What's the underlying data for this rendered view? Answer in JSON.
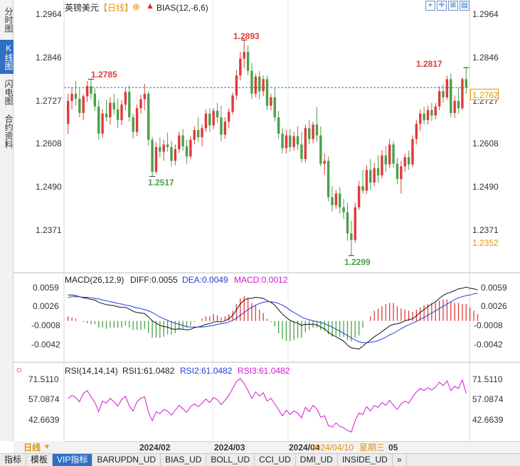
{
  "sidebar": {
    "tabs": [
      {
        "label": "分时图",
        "active": false
      },
      {
        "label": "K线图",
        "active": true
      },
      {
        "label": "闪电图",
        "active": false
      },
      {
        "label": "合约资料",
        "active": false
      }
    ]
  },
  "header": {
    "symbol": "英镑美元",
    "period": "【日线】",
    "circle_icon": "⊕",
    "indicator": "BIAS(12,-6,6)",
    "tool_icons": [
      "fit-icon",
      "expand-icon",
      "zoom-in-icon",
      "grid-icon",
      "chart-icon"
    ]
  },
  "price_axis": {
    "labels_right": [
      "1.2964",
      "1.2846",
      "1.2727",
      "1.2608",
      "1.2490",
      "1.2371"
    ],
    "labels_left": [
      "1.2964",
      "1.2846",
      "1.2727",
      "1.2608",
      "1.2490",
      "1.2371"
    ],
    "current_price": "1.2762",
    "low_marker": "1.2352",
    "current_color": "#e8930a"
  },
  "annotations": {
    "high1": "1.2785",
    "high2": "1.2893",
    "high3": "1.2817",
    "low1": "1.2517",
    "low2": "1.2299",
    "high_color": "#e03a3a",
    "low_color": "#4aa04a"
  },
  "macd": {
    "title": "MACD(26,12,9)",
    "diff": "DIFF:0.0055",
    "dea": "DEA:0.0049",
    "macd": "MACD:0.0012",
    "axis": [
      "0.0059",
      "0.0026",
      "-0.0008",
      "-0.0042"
    ],
    "dea_color": "#1e3fd8",
    "macd_color": "#d21ad2"
  },
  "rsi": {
    "title": "RSI(14,14,14)",
    "rsi1": "RSI1:61.0482",
    "rsi2": "RSI2:61.0482",
    "rsi3": "RSI3:61.0482",
    "axis": [
      "71.5110",
      "57.0874",
      "42.6639"
    ],
    "settings_icon": "gear-icon",
    "line_color": "#d21ad2"
  },
  "timeline": {
    "period_button": "日线",
    "dates": [
      "2024/02",
      "2024/03",
      "2024/04"
    ],
    "cursor_date": "2024/04/10",
    "weekday": "星期三",
    "cursor_tail": "05"
  },
  "bottom_tabs": [
    {
      "label": "指标",
      "active": false
    },
    {
      "label": "模板",
      "active": false
    },
    {
      "label": "VIP指标",
      "active": true
    },
    {
      "label": "BARUPDN_UD",
      "active": false
    },
    {
      "label": "BIAS_UD",
      "active": false
    },
    {
      "label": "BOLL_UD",
      "active": false
    },
    {
      "label": "CCI_UD",
      "active": false
    },
    {
      "label": "DMI_UD",
      "active": false
    },
    {
      "label": "INSIDE_UD",
      "active": false
    },
    {
      "label": "»",
      "active": false
    }
  ],
  "chart_data": {
    "type": "candlestick",
    "title": "英镑美元【日线】",
    "ylim": [
      1.228,
      1.298
    ],
    "x_ticks": [
      "2024/02",
      "2024/03",
      "2024/04"
    ],
    "ohlc": [
      [
        1.2662,
        1.2745,
        1.2634,
        1.2725
      ],
      [
        1.2725,
        1.2762,
        1.2701,
        1.2745
      ],
      [
        1.2745,
        1.278,
        1.2712,
        1.2731
      ],
      [
        1.2731,
        1.276,
        1.268,
        1.2692
      ],
      [
        1.2692,
        1.2745,
        1.2672,
        1.2738
      ],
      [
        1.2738,
        1.278,
        1.2722,
        1.2766
      ],
      [
        1.2766,
        1.2785,
        1.273,
        1.2745
      ],
      [
        1.2745,
        1.276,
        1.2698,
        1.271
      ],
      [
        1.271,
        1.2728,
        1.2618,
        1.2635
      ],
      [
        1.2635,
        1.2702,
        1.2624,
        1.269
      ],
      [
        1.269,
        1.2728,
        1.2668,
        1.268
      ],
      [
        1.268,
        1.2735,
        1.266,
        1.272
      ],
      [
        1.272,
        1.2745,
        1.2688,
        1.2702
      ],
      [
        1.2702,
        1.2732,
        1.265,
        1.2672
      ],
      [
        1.2672,
        1.2728,
        1.2658,
        1.2715
      ],
      [
        1.2715,
        1.276,
        1.27,
        1.275
      ],
      [
        1.275,
        1.2768,
        1.2668,
        1.268
      ],
      [
        1.268,
        1.269,
        1.2622,
        1.264
      ],
      [
        1.264,
        1.2715,
        1.2628,
        1.2705
      ],
      [
        1.2705,
        1.2742,
        1.269,
        1.273
      ],
      [
        1.273,
        1.2772,
        1.27,
        1.2745
      ],
      [
        1.2745,
        1.2752,
        1.2602,
        1.2618
      ],
      [
        1.2618,
        1.2626,
        1.2517,
        1.253
      ],
      [
        1.253,
        1.2612,
        1.2524,
        1.2598
      ],
      [
        1.2598,
        1.2625,
        1.257,
        1.2585
      ],
      [
        1.2585,
        1.2618,
        1.256,
        1.2605
      ],
      [
        1.2605,
        1.2638,
        1.2585,
        1.2598
      ],
      [
        1.2598,
        1.2615,
        1.2545,
        1.256
      ],
      [
        1.256,
        1.2605,
        1.2548,
        1.2592
      ],
      [
        1.2592,
        1.264,
        1.2582,
        1.263
      ],
      [
        1.263,
        1.2648,
        1.2588,
        1.26
      ],
      [
        1.26,
        1.2618,
        1.2552,
        1.2572
      ],
      [
        1.2572,
        1.2628,
        1.2565,
        1.2618
      ],
      [
        1.2618,
        1.2655,
        1.2605,
        1.2645
      ],
      [
        1.2645,
        1.268,
        1.2612,
        1.2625
      ],
      [
        1.2625,
        1.266,
        1.26,
        1.265
      ],
      [
        1.265,
        1.2702,
        1.264,
        1.269
      ],
      [
        1.269,
        1.2705,
        1.264,
        1.2658
      ],
      [
        1.2658,
        1.2705,
        1.2648,
        1.2698
      ],
      [
        1.2698,
        1.272,
        1.2665,
        1.268
      ],
      [
        1.268,
        1.2712,
        1.2615,
        1.2632
      ],
      [
        1.2632,
        1.268,
        1.262,
        1.2668
      ],
      [
        1.2668,
        1.2705,
        1.265,
        1.2695
      ],
      [
        1.2695,
        1.2748,
        1.2688,
        1.274
      ],
      [
        1.274,
        1.281,
        1.2728,
        1.2795
      ],
      [
        1.2795,
        1.286,
        1.2782,
        1.2842
      ],
      [
        1.2842,
        1.2893,
        1.2815,
        1.286
      ],
      [
        1.286,
        1.2878,
        1.2795,
        1.2808
      ],
      [
        1.2808,
        1.283,
        1.273,
        1.2745
      ],
      [
        1.2745,
        1.28,
        1.2735,
        1.2792
      ],
      [
        1.2792,
        1.2808,
        1.273,
        1.2752
      ],
      [
        1.2752,
        1.2795,
        1.2738,
        1.2785
      ],
      [
        1.2785,
        1.2795,
        1.27,
        1.2712
      ],
      [
        1.2712,
        1.2745,
        1.27,
        1.2735
      ],
      [
        1.2735,
        1.2762,
        1.2668,
        1.268
      ],
      [
        1.268,
        1.2698,
        1.262,
        1.2635
      ],
      [
        1.2635,
        1.265,
        1.258,
        1.2595
      ],
      [
        1.2595,
        1.2645,
        1.258,
        1.263
      ],
      [
        1.263,
        1.2648,
        1.2585,
        1.2598
      ],
      [
        1.2598,
        1.264,
        1.2588,
        1.2628
      ],
      [
        1.2628,
        1.2655,
        1.259,
        1.2605
      ],
      [
        1.2605,
        1.264,
        1.2555,
        1.2565
      ],
      [
        1.2565,
        1.266,
        1.2555,
        1.265
      ],
      [
        1.265,
        1.2672,
        1.2605,
        1.262
      ],
      [
        1.262,
        1.2668,
        1.2608,
        1.266
      ],
      [
        1.266,
        1.2708,
        1.2612,
        1.263
      ],
      [
        1.263,
        1.2655,
        1.2545,
        1.2552
      ],
      [
        1.2552,
        1.258,
        1.2522,
        1.256
      ],
      [
        1.256,
        1.2572,
        1.2448,
        1.246
      ],
      [
        1.246,
        1.249,
        1.242,
        1.2438
      ],
      [
        1.2438,
        1.248,
        1.2428,
        1.247
      ],
      [
        1.247,
        1.2488,
        1.2415,
        1.2432
      ],
      [
        1.2432,
        1.2455,
        1.24,
        1.2418
      ],
      [
        1.2418,
        1.2445,
        1.234,
        1.236
      ],
      [
        1.236,
        1.2395,
        1.2299,
        1.2342
      ],
      [
        1.2342,
        1.2445,
        1.2335,
        1.2432
      ],
      [
        1.2432,
        1.2505,
        1.2425,
        1.249
      ],
      [
        1.249,
        1.2535,
        1.247,
        1.2478
      ],
      [
        1.2478,
        1.2548,
        1.2468,
        1.2535
      ],
      [
        1.2535,
        1.2565,
        1.248,
        1.25
      ],
      [
        1.25,
        1.2555,
        1.249,
        1.254
      ],
      [
        1.254,
        1.2575,
        1.25,
        1.252
      ],
      [
        1.252,
        1.259,
        1.2512,
        1.2575
      ],
      [
        1.2575,
        1.26,
        1.253,
        1.255
      ],
      [
        1.255,
        1.262,
        1.254,
        1.2605
      ],
      [
        1.2605,
        1.2615,
        1.254,
        1.2552
      ],
      [
        1.2552,
        1.2568,
        1.2495,
        1.251
      ],
      [
        1.251,
        1.256,
        1.247,
        1.2545
      ],
      [
        1.2545,
        1.258,
        1.253,
        1.257
      ],
      [
        1.257,
        1.2588,
        1.2535,
        1.255
      ],
      [
        1.255,
        1.263,
        1.2542,
        1.262
      ],
      [
        1.262,
        1.2672,
        1.2605,
        1.2662
      ],
      [
        1.2662,
        1.2702,
        1.2642,
        1.269
      ],
      [
        1.269,
        1.271,
        1.266,
        1.2672
      ],
      [
        1.2672,
        1.2712,
        1.266,
        1.27
      ],
      [
        1.27,
        1.272,
        1.267,
        1.2685
      ],
      [
        1.2685,
        1.272,
        1.2675,
        1.271
      ],
      [
        1.271,
        1.2765,
        1.27,
        1.2752
      ],
      [
        1.2752,
        1.277,
        1.272,
        1.2735
      ],
      [
        1.2735,
        1.2795,
        1.2728,
        1.2785
      ],
      [
        1.2785,
        1.28,
        1.268,
        1.2692
      ],
      [
        1.2692,
        1.274,
        1.2678,
        1.2725
      ],
      [
        1.2725,
        1.2762,
        1.269,
        1.2705
      ],
      [
        1.2705,
        1.279,
        1.27,
        1.2785
      ],
      [
        1.2785,
        1.2817,
        1.2745,
        1.2762
      ]
    ],
    "macd": {
      "ylim": [
        -0.0058,
        0.0072
      ],
      "diff": [
        0.0046,
        0.0046,
        0.0045,
        0.0043,
        0.0041,
        0.004,
        0.0038,
        0.0037,
        0.0033,
        0.0031,
        0.0029,
        0.0028,
        0.0027,
        0.0025,
        0.0024,
        0.0024,
        0.0021,
        0.0017,
        0.0015,
        0.0014,
        0.0013,
        0.0007,
        0.0,
        -0.0004,
        -0.0008,
        -0.001,
        -0.0011,
        -0.0014,
        -0.0015,
        -0.0014,
        -0.0015,
        -0.0016,
        -0.0015,
        -0.0012,
        -0.0011,
        -0.0009,
        -0.0006,
        -0.0005,
        -0.0002,
        -0.0001,
        -0.0002,
        0.0,
        0.0004,
        0.001,
        0.002,
        0.003,
        0.0037,
        0.004,
        0.004,
        0.0042,
        0.0041,
        0.004,
        0.0036,
        0.0033,
        0.0028,
        0.002,
        0.0012,
        0.0006,
        0.0001,
        -0.0002,
        -0.0004,
        -0.0008,
        -0.0006,
        -0.0006,
        -0.0006,
        -0.0007,
        -0.0011,
        -0.0014,
        -0.002,
        -0.0025,
        -0.0028,
        -0.0032,
        -0.0036,
        -0.0043,
        -0.0048,
        -0.0049,
        -0.005,
        -0.0045,
        -0.0039,
        -0.0034,
        -0.0028,
        -0.0024,
        -0.0019,
        -0.0014,
        -0.0009,
        -0.0006,
        -0.0005,
        -0.0003,
        0.0,
        0.0002,
        0.0004,
        0.0009,
        0.0015,
        0.002,
        0.0025,
        0.003,
        0.0034,
        0.004,
        0.0045,
        0.0049,
        0.0051,
        0.0054,
        0.0057,
        0.0058,
        0.006,
        0.0058,
        0.0057,
        0.0055
      ],
      "dea": [
        0.0042,
        0.0043,
        0.0043,
        0.0043,
        0.0042,
        0.0042,
        0.0041,
        0.004,
        0.0039,
        0.0037,
        0.0036,
        0.0034,
        0.0033,
        0.0031,
        0.003,
        0.0028,
        0.0027,
        0.0025,
        0.0023,
        0.0022,
        0.002,
        0.0018,
        0.0015,
        0.0011,
        0.0007,
        0.0004,
        0.0001,
        -0.0002,
        -0.0004,
        -0.0006,
        -0.0008,
        -0.001,
        -0.0011,
        -0.0011,
        -0.0011,
        -0.0011,
        -0.001,
        -0.0009,
        -0.0008,
        -0.0006,
        -0.0005,
        -0.0004,
        -0.0002,
        0.0001,
        0.0005,
        0.001,
        0.0015,
        0.002,
        0.0024,
        0.0028,
        0.0031,
        0.0033,
        0.0034,
        0.0034,
        0.0033,
        0.0031,
        0.0028,
        0.0024,
        0.0019,
        0.0015,
        0.0011,
        0.0007,
        0.0004,
        0.0002,
        0.0,
        -0.0001,
        -0.0003,
        -0.0005,
        -0.0008,
        -0.0011,
        -0.0015,
        -0.0018,
        -0.0022,
        -0.0026,
        -0.003,
        -0.0034,
        -0.0037,
        -0.0039,
        -0.0039,
        -0.0038,
        -0.0037,
        -0.0035,
        -0.0032,
        -0.0029,
        -0.0025,
        -0.0022,
        -0.0018,
        -0.0014,
        -0.001,
        -0.0007,
        -0.0004,
        -0.0001,
        0.0003,
        0.0006,
        0.001,
        0.0014,
        0.0018,
        0.0022,
        0.0026,
        0.003,
        0.0034,
        0.0038,
        0.0041,
        0.0043,
        0.0045,
        0.0046,
        0.0048,
        0.0049
      ]
    },
    "rsi": {
      "ylim": [
        30,
        80
      ],
      "values": [
        57.5,
        59.5,
        58.0,
        55.0,
        61.0,
        63.0,
        58.5,
        54.5,
        48.0,
        55.5,
        54.0,
        57.5,
        55.0,
        52.0,
        56.5,
        59.0,
        52.0,
        48.5,
        55.0,
        57.5,
        58.5,
        47.5,
        41.5,
        48.0,
        46.5,
        49.5,
        48.5,
        45.5,
        49.0,
        52.5,
        50.0,
        47.5,
        51.5,
        53.5,
        51.5,
        54.0,
        57.0,
        54.5,
        58.0,
        56.5,
        53.0,
        56.0,
        59.5,
        64.5,
        69.5,
        71.5,
        68.0,
        63.0,
        57.5,
        62.0,
        59.0,
        61.5,
        55.5,
        57.5,
        53.5,
        49.5,
        45.0,
        49.0,
        46.0,
        48.5,
        47.0,
        43.5,
        51.0,
        48.0,
        52.5,
        50.0,
        44.0,
        45.0,
        38.0,
        37.0,
        40.0,
        37.5,
        36.5,
        34.5,
        33.5,
        41.5,
        47.0,
        46.0,
        51.5,
        48.5,
        52.5,
        51.0,
        54.5,
        52.5,
        56.0,
        52.5,
        49.5,
        53.5,
        55.5,
        54.0,
        58.5,
        62.0,
        64.5,
        63.0,
        65.0,
        63.5,
        65.5,
        69.0,
        66.5,
        70.0,
        63.0,
        66.0,
        64.5,
        70.5,
        61.0
      ]
    }
  }
}
